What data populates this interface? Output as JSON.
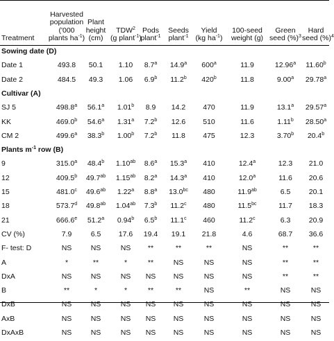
{
  "header": {
    "cols": [
      {
        "lines": [
          "Treatment"
        ]
      },
      {
        "lines": [
          "Harvested",
          "population",
          "('000",
          "plants ha",
          ")"
        ],
        "sup_line": 3,
        "sup": "-1"
      },
      {
        "lines": [
          "Plant",
          "height",
          "(cm)"
        ]
      },
      {
        "lines": [
          "TDW",
          "(g plant",
          ")"
        ],
        "sup_marks": {
          "0": "2",
          "1": "-1"
        }
      },
      {
        "lines": [
          "Pods",
          "plant"
        ],
        "sup_marks": {
          "1": "-1"
        }
      },
      {
        "lines": [
          "Seeds",
          "plant"
        ],
        "sup_marks": {
          "1": "-1"
        }
      },
      {
        "lines": [
          "Yield",
          "(kg ha",
          ")"
        ],
        "sup_marks": {
          "1": "-1"
        }
      },
      {
        "lines": [
          "100-seed",
          "weight (g)"
        ]
      },
      {
        "lines": [
          "Green",
          "seed (%)"
        ],
        "sup_marks": {
          "1": "3"
        }
      },
      {
        "lines": [
          "Hard",
          "seed (%)"
        ],
        "sup_marks": {
          "1": "4"
        }
      }
    ]
  },
  "sections": [
    {
      "title": "Sowing date (D)",
      "rows": [
        {
          "label": "Date 1",
          "cells": [
            [
              "493.8",
              ""
            ],
            [
              "50.1",
              ""
            ],
            [
              "1.10",
              ""
            ],
            [
              "8.7",
              "a"
            ],
            [
              "14.9",
              "a"
            ],
            [
              "600",
              "a"
            ],
            [
              "11.9",
              ""
            ],
            [
              "12.96",
              "a"
            ],
            [
              "11.60",
              "b"
            ]
          ]
        },
        {
          "label": "Date 2",
          "cells": [
            [
              "484.5",
              ""
            ],
            [
              "49.3",
              ""
            ],
            [
              "1.06",
              ""
            ],
            [
              "6.9",
              "b"
            ],
            [
              "11.2",
              "b"
            ],
            [
              "420",
              "b"
            ],
            [
              "11.8",
              ""
            ],
            [
              "9.00",
              "a"
            ],
            [
              "29.78",
              "a"
            ]
          ]
        }
      ]
    },
    {
      "title": "Cultivar (A)",
      "rows": [
        {
          "label": "SJ 5",
          "cells": [
            [
              "498.8",
              "a"
            ],
            [
              "56.1",
              "a"
            ],
            [
              "1.01",
              "b"
            ],
            [
              "8.9",
              ""
            ],
            [
              "14.2",
              ""
            ],
            [
              "470",
              ""
            ],
            [
              "11.9",
              ""
            ],
            [
              "13.1",
              "a"
            ],
            [
              "29.57",
              "a"
            ]
          ]
        },
        {
          "label": "KK",
          "cells": [
            [
              "469.0",
              "b"
            ],
            [
              "54.6",
              "a"
            ],
            [
              "1.31",
              "a"
            ],
            [
              "7.2",
              "b"
            ],
            [
              "12.6",
              ""
            ],
            [
              "510",
              ""
            ],
            [
              "11.6",
              ""
            ],
            [
              "1.11",
              "b"
            ],
            [
              "28.50",
              "a"
            ]
          ]
        },
        {
          "label": "CM 2",
          "cells": [
            [
              "499.6",
              "a"
            ],
            [
              "38.3",
              "b"
            ],
            [
              "1.00",
              "b"
            ],
            [
              "7.2",
              "b"
            ],
            [
              "11.8",
              ""
            ],
            [
              "475",
              ""
            ],
            [
              "12.3",
              ""
            ],
            [
              "3.70",
              "b"
            ],
            [
              "20.4",
              "b"
            ]
          ]
        }
      ]
    },
    {
      "title": "Plants m",
      "title_sup": "-1",
      "title_tail": " row (B)",
      "rows": [
        {
          "label": "9",
          "cells": [
            [
              "315.0",
              "a"
            ],
            [
              "48.4",
              "b"
            ],
            [
              "1.10",
              "ab"
            ],
            [
              "8.6",
              "a"
            ],
            [
              "15.3",
              "a"
            ],
            [
              "410",
              ""
            ],
            [
              "12.4",
              "a"
            ],
            [
              "12.3",
              ""
            ],
            [
              "21.0",
              ""
            ]
          ]
        },
        {
          "label": "12",
          "cells": [
            [
              "409.5",
              "b"
            ],
            [
              "49.7",
              "ab"
            ],
            [
              "1.15",
              "ab"
            ],
            [
              "8.2",
              "a"
            ],
            [
              "14.3",
              "a"
            ],
            [
              "410",
              ""
            ],
            [
              "12.0",
              "a"
            ],
            [
              "11.6",
              ""
            ],
            [
              "20.6",
              ""
            ]
          ]
        },
        {
          "label": "15",
          "cells": [
            [
              "481.0",
              "c"
            ],
            [
              "49.6",
              "ab"
            ],
            [
              "1.22",
              "a"
            ],
            [
              "8.8",
              "a"
            ],
            [
              "13.0",
              "bc"
            ],
            [
              "480",
              ""
            ],
            [
              "11.9",
              "ab"
            ],
            [
              "6.5",
              ""
            ],
            [
              "20.1",
              ""
            ]
          ]
        },
        {
          "label": "18",
          "cells": [
            [
              "573.7",
              "d"
            ],
            [
              "49.8",
              "ab"
            ],
            [
              "1.04",
              "ab"
            ],
            [
              "7.3",
              "b"
            ],
            [
              "11.2",
              "c"
            ],
            [
              "480",
              ""
            ],
            [
              "11.5",
              "bc"
            ],
            [
              "11.7",
              ""
            ],
            [
              "18.3",
              ""
            ]
          ]
        },
        {
          "label": "21",
          "cells": [
            [
              "666.6",
              "e"
            ],
            [
              "51.2",
              "a"
            ],
            [
              "0.94",
              "b"
            ],
            [
              "6.5",
              "b"
            ],
            [
              "11.1",
              "c"
            ],
            [
              "460",
              ""
            ],
            [
              "11.2",
              "c"
            ],
            [
              "6.3",
              ""
            ],
            [
              "20.9",
              ""
            ]
          ]
        }
      ]
    }
  ],
  "stats_rows": [
    {
      "label": "CV (%)",
      "cells": [
        "7.9",
        "6.5",
        "17.6",
        "19.4",
        "19.1",
        "21.8",
        "4.6",
        "68.7",
        "36.6"
      ]
    },
    {
      "label": "F- test: D",
      "cells": [
        "NS",
        "NS",
        "NS",
        "**",
        "**",
        "**",
        "NS",
        "**",
        "**"
      ]
    },
    {
      "label": "A",
      "cells": [
        "*",
        "**",
        "*",
        "**",
        "NS",
        "NS",
        "NS",
        "**",
        "**"
      ]
    },
    {
      "label": "DxA",
      "cells": [
        "NS",
        "NS",
        "NS",
        "NS",
        "NS",
        "NS",
        "NS",
        "**",
        "**"
      ]
    },
    {
      "label": "B",
      "cells": [
        "**",
        "*",
        "*",
        "**",
        "**",
        "NS",
        "**",
        "NS",
        "NS"
      ]
    },
    {
      "label": "DxB",
      "cells": [
        "NS",
        "NS",
        "NS",
        "NS",
        "NS",
        "NS",
        "NS",
        "NS",
        "NS"
      ]
    },
    {
      "label": "AxB",
      "cells": [
        "NS",
        "NS",
        "NS",
        "NS",
        "NS",
        "NS",
        "NS",
        "NS",
        "NS"
      ]
    },
    {
      "label": "DxAxB",
      "cells": [
        "NS",
        "NS",
        "NS",
        "NS",
        "NS",
        "NS",
        "NS",
        "NS",
        "NS"
      ]
    }
  ]
}
